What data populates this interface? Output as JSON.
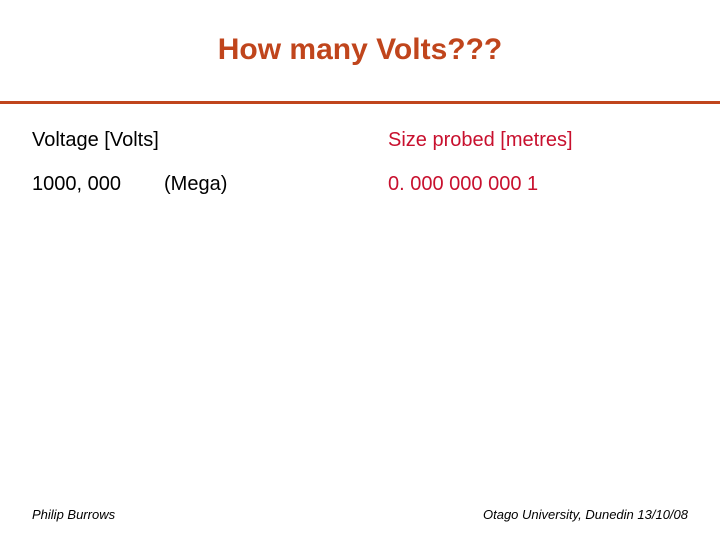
{
  "slide": {
    "title": "How many Volts???",
    "left_header": "Voltage [Volts]",
    "right_header": "Size probed [metres]",
    "left_value": "1000, 000",
    "left_unit": "(Mega)",
    "right_value": "0. 000 000 000 1"
  },
  "footer": {
    "author": "Philip Burrows",
    "venue_date": "Otago University, Dunedin 13/10/08"
  },
  "colors": {
    "title": "#c0451c",
    "accent": "#c8102e"
  }
}
